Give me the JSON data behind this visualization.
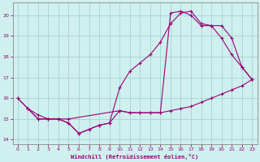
{
  "xlabel": "Windchill (Refroidissement éolien,°C)",
  "background_color": "#cff0ee",
  "grid_color": "#aad8d5",
  "line_color": "#990077",
  "xlim": [
    -0.5,
    23.5
  ],
  "ylim": [
    13.8,
    20.6
  ],
  "yticks": [
    14,
    15,
    16,
    17,
    18,
    19,
    20
  ],
  "xticks": [
    0,
    1,
    2,
    3,
    4,
    5,
    6,
    7,
    8,
    9,
    10,
    11,
    12,
    13,
    14,
    15,
    16,
    17,
    18,
    19,
    20,
    21,
    22,
    23
  ],
  "line1_x": [
    0,
    1,
    2,
    3,
    4,
    5,
    6,
    7,
    8,
    9,
    10,
    11,
    12,
    13,
    14,
    15,
    16,
    17,
    18,
    19,
    20,
    21,
    22,
    23
  ],
  "line1_y": [
    16.0,
    15.5,
    15.0,
    15.0,
    15.0,
    14.8,
    14.3,
    14.5,
    14.7,
    14.8,
    15.4,
    15.3,
    15.3,
    15.3,
    15.3,
    15.4,
    15.5,
    15.6,
    15.8,
    16.0,
    16.2,
    16.4,
    16.6,
    16.9
  ],
  "line2_x": [
    0,
    1,
    2,
    3,
    4,
    5,
    6,
    7,
    8,
    9,
    10,
    11,
    12,
    13,
    14,
    15,
    16,
    17,
    18,
    19,
    20,
    21,
    22,
    23
  ],
  "line2_y": [
    16.0,
    15.5,
    15.0,
    15.0,
    15.0,
    14.8,
    14.3,
    14.5,
    14.7,
    14.8,
    16.5,
    17.3,
    17.7,
    18.1,
    18.7,
    19.6,
    20.1,
    20.2,
    19.6,
    19.5,
    18.9,
    18.1,
    17.5,
    16.9
  ],
  "line3_x": [
    1,
    2,
    3,
    4,
    5,
    10,
    11,
    12,
    13,
    14,
    15,
    16,
    17,
    18,
    19,
    20,
    21,
    22,
    23
  ],
  "line3_y": [
    15.5,
    15.2,
    15.0,
    15.0,
    15.0,
    15.4,
    15.3,
    15.3,
    15.3,
    15.3,
    20.1,
    20.2,
    20.0,
    19.5,
    19.5,
    19.5,
    18.9,
    17.5,
    16.9
  ]
}
